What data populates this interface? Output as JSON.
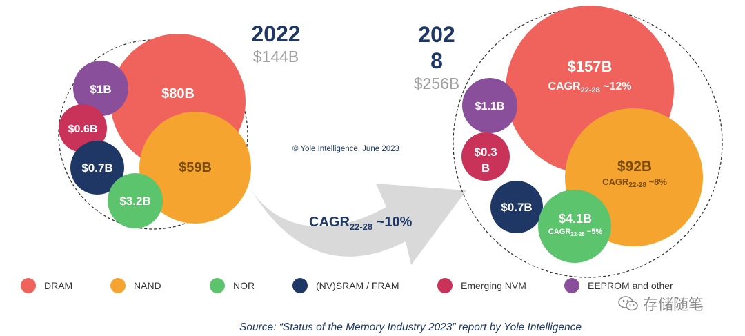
{
  "chart_data": {
    "type": "bubble",
    "panels": [
      {
        "year_line1": "2022",
        "year_line2": "",
        "total": "$144B",
        "bubbles": [
          {
            "segment": "DRAM",
            "label": "$80B",
            "value": 80
          },
          {
            "segment": "NAND",
            "label": "$59B",
            "value": 59
          },
          {
            "segment": "EEPROM and other",
            "label": "$1B",
            "value": 1
          },
          {
            "segment": "Emerging NVM",
            "label": "$0.6B",
            "value": 0.6
          },
          {
            "segment": "(NV)SRAM / FRAM",
            "label": "$0.7B",
            "value": 0.7
          },
          {
            "segment": "NOR",
            "label": "$3.2B",
            "value": 3.2
          }
        ]
      },
      {
        "year_line1": "202",
        "year_line2": "8",
        "total": "$256B",
        "bubbles": [
          {
            "segment": "DRAM",
            "label": "$157B",
            "value": 157,
            "cagr": "CAGR",
            "cagr_sub": "22-28",
            "cagr_val": " ~12%"
          },
          {
            "segment": "NAND",
            "label": "$92B",
            "value": 92,
            "cagr": "CAGR",
            "cagr_sub": "22-28",
            "cagr_val": " ~8%"
          },
          {
            "segment": "EEPROM and other",
            "label": "$1.1B",
            "value": 1.1
          },
          {
            "segment": "Emerging NVM",
            "label_line1": "$0.3",
            "label_line2": "B",
            "value": 0.3
          },
          {
            "segment": "(NV)SRAM / FRAM",
            "label": "$0.7B",
            "value": 0.7
          },
          {
            "segment": "NOR",
            "label": "$4.1B",
            "value": 4.1,
            "cagr": "CAGR",
            "cagr_sub": "22-28",
            "cagr_val": " ~5%"
          }
        ]
      }
    ],
    "overall_cagr": {
      "text": "CAGR",
      "sub": "22-28",
      "value": " ~10%"
    },
    "legend": [
      {
        "label": "DRAM",
        "color": "#f0635c"
      },
      {
        "label": "NAND",
        "color": "#f5a52f"
      },
      {
        "label": "NOR",
        "color": "#5cc46c"
      },
      {
        "label": "(NV)SRAM / FRAM",
        "color": "#1e3765"
      },
      {
        "label": "Emerging NVM",
        "color": "#c9335a"
      },
      {
        "label": "EEPROM and other",
        "color": "#8a4f9a"
      }
    ]
  },
  "copyright": "© Yole Intelligence, June 2023",
  "source": "Source: “Status of the Memory Industry 2023” report by Yole Intelligence",
  "watermark": "存储随笔",
  "colors": {
    "dram": "#f0635c",
    "nand": "#f5a52f",
    "nor": "#5cc46c",
    "sram": "#1e3765",
    "nvm": "#c9335a",
    "eeprom": "#8a4f9a",
    "year": "#1e3765",
    "total": "#a0a0a0",
    "arrow": "#d9d9d9"
  }
}
